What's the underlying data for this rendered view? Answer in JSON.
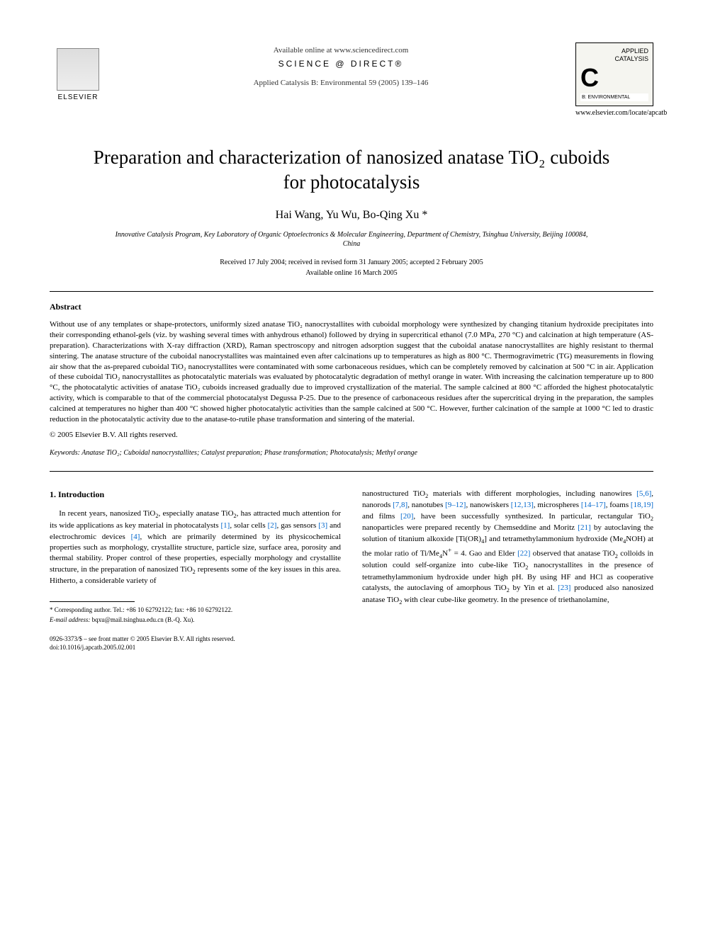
{
  "header": {
    "publisher_name": "ELSEVIER",
    "available_text": "Available online at www.sciencedirect.com",
    "science_direct": "SCIENCE @ DIRECT®",
    "journal_ref": "Applied Catalysis B: Environmental 59 (2005) 139–146",
    "journal_box_name1": "APPLIED",
    "journal_box_name2": "CATALYSIS",
    "journal_box_sub": "B: ENVIRONMENTAL",
    "journal_url": "www.elsevier.com/locate/apcatb"
  },
  "title": "Preparation and characterization of nanosized anatase TiO₂ cuboids for photocatalysis",
  "authors": "Hai Wang, Yu Wu, Bo-Qing Xu",
  "author_marker": "*",
  "affiliation": "Innovative Catalysis Program, Key Laboratory of Organic Optoelectronics & Molecular Engineering, Department of Chemistry, Tsinghua University, Beijing 100084, China",
  "dates_line1": "Received 17 July 2004; received in revised form 31 January 2005; accepted 2 February 2005",
  "dates_line2": "Available online 16 March 2005",
  "abstract_heading": "Abstract",
  "abstract_text": "Without use of any templates or shape-protectors, uniformly sized anatase TiO₂ nanocrystallites with cuboidal morphology were synthesized by changing titanium hydroxide precipitates into their corresponding ethanol-gels (viz. by washing several times with anhydrous ethanol) followed by drying in supercritical ethanol (7.0 MPa, 270 °C) and calcination at high temperature (AS-preparation). Characterizations with X-ray diffraction (XRD), Raman spectroscopy and nitrogen adsorption suggest that the cuboidal anatase nanocrystallites are highly resistant to thermal sintering. The anatase structure of the cuboidal nanocrystallites was maintained even after calcinations up to temperatures as high as 800 °C. Thermogravimetric (TG) measurements in flowing air show that the as-prepared cuboidal TiO₂ nanocrystallites were contaminated with some carbonaceous residues, which can be completely removed by calcination at 500 °C in air. Application of these cuboidal TiO₂ nanocrystallites as photocatalytic materials was evaluated by photocatalytic degradation of methyl orange in water. With increasing the calcination temperature up to 800 °C, the photocatalytic activities of anatase TiO₂ cuboids increased gradually due to improved crystallization of the material. The sample calcined at 800 °C afforded the highest photocatalytic activity, which is comparable to that of the commercial photocatalyst Degussa P-25. Due to the presence of carbonaceous residues after the supercritical drying in the preparation, the samples calcined at temperatures no higher than 400 °C showed higher photocatalytic activities than the sample calcined at 500 °C. However, further calcination of the sample at 1000 °C led to drastic reduction in the photocatalytic activity due to the anatase-to-rutile phase transformation and sintering of the material.",
  "copyright": "© 2005 Elsevier B.V. All rights reserved.",
  "keywords_label": "Keywords:",
  "keywords_text": "Anatase TiO₂; Cuboidal nanocrystallites; Catalyst preparation; Phase transformation; Photocatalysis; Methyl orange",
  "section1_heading": "1. Introduction",
  "col_left": "In recent years, nanosized TiO₂, especially anatase TiO₂, has attracted much attention for its wide applications as key material in photocatalysts [1], solar cells [2], gas sensors [3] and electrochromic devices [4], which are primarily determined by its physicochemical properties such as morphology, crystallite structure, particle size, surface area, porosity and thermal stability. Proper control of these properties, especially morphology and crystallite structure, in the preparation of nanosized TiO₂ represents some of the key issues in this area. Hitherto, a considerable variety of",
  "col_right": "nanostructured TiO₂ materials with different morphologies, including nanowires [5,6], nanorods [7,8], nanotubes [9–12], nanowiskers [12,13], microspheres [14–17], foams [18,19] and films [20], have been successfully synthesized. In particular, rectangular TiO₂ nanoparticles were prepared recently by Chemseddine and Moritz [21] by autoclaving the solution of titanium alkoxide [Ti(OR)₄] and tetramethylammonium hydroxide (Me₄NOH) at the molar ratio of Ti/Me₄N⁺ = 4. Gao and Elder [22] observed that anatase TiO₂ colloids in solution could self-organize into cube-like TiO₂ nanocrystallites in the presence of tetramethylammonium hydroxide under high pH. By using HF and HCl as cooperative catalysts, the autoclaving of amorphous TiO₂ by Yin et al. [23] produced also nanosized anatase TiO₂ with clear cube-like geometry. In the presence of triethanolamine,",
  "refs": {
    "r1": "[1]",
    "r2": "[2]",
    "r3": "[3]",
    "r4": "[4]",
    "r5_6": "[5,6]",
    "r7_8": "[7,8]",
    "r9_12": "[9–12]",
    "r12_13": "[12,13]",
    "r14_17": "[14–17]",
    "r18_19": "[18,19]",
    "r20": "[20]",
    "r21": "[21]",
    "r22": "[22]",
    "r23": "[23]"
  },
  "footnote_corresponding": "* Corresponding author. Tel.: +86 10 62792122; fax: +86 10 62792122.",
  "footnote_email_label": "E-mail address:",
  "footnote_email": "bqxu@mail.tsinghua.edu.cn (B.-Q. Xu).",
  "footer_issn": "0926-3373/$ – see front matter © 2005 Elsevier B.V. All rights reserved.",
  "footer_doi": "doi:10.1016/j.apcatb.2005.02.001",
  "colors": {
    "text": "#000000",
    "background": "#ffffff",
    "link": "#0066cc",
    "border": "#000000"
  }
}
